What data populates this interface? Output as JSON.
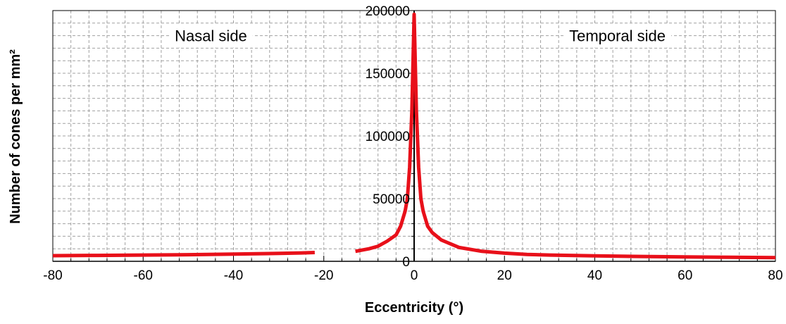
{
  "chart_data": {
    "type": "line",
    "title": "",
    "xlabel": "Eccentricity (°)",
    "ylabel": "Number of cones per mm²",
    "xlim": [
      -80,
      80
    ],
    "ylim": [
      0,
      200000
    ],
    "x_ticks": [
      -80,
      -60,
      -40,
      -20,
      0,
      20,
      40,
      60,
      80
    ],
    "x_tick_labels": [
      "-80",
      "-60",
      "-40",
      "-20",
      "0",
      "20",
      "40",
      "60",
      "80"
    ],
    "y_ticks": [
      0,
      50000,
      100000,
      150000,
      200000
    ],
    "y_tick_labels": [
      "0",
      "50000",
      "100000",
      "150000",
      "200000"
    ],
    "grid": true,
    "annotations": [
      {
        "text": "Nasal side",
        "x": -45,
        "y": 180000
      },
      {
        "text": "Temporal side",
        "x": 45,
        "y": 180000
      }
    ],
    "series": [
      {
        "name": "",
        "color": "#e8101a",
        "segments": [
          {
            "x": [
              -80,
              -70,
              -60,
              -50,
              -40,
              -30,
              -25,
              -22
            ],
            "y": [
              4500,
              4700,
              5000,
              5300,
              5800,
              6300,
              6700,
              7000
            ]
          },
          {
            "x": [
              -13,
              -10,
              -8,
              -6,
              -4,
              -3,
              -2,
              -1.5,
              -1,
              -0.5,
              0,
              0.5,
              1,
              1.5,
              2,
              3,
              4,
              6,
              8,
              10,
              15,
              20,
              25,
              30,
              40,
              50,
              60,
              70,
              80
            ],
            "y": [
              8000,
              10000,
              12000,
              16000,
              21000,
              28000,
              40000,
              50000,
              75000,
              120000,
              197000,
              120000,
              75000,
              50000,
              40000,
              28000,
              23000,
              17000,
              14000,
              11000,
              8000,
              6500,
              5500,
              5000,
              4300,
              3900,
              3500,
              3200,
              3000
            ]
          }
        ]
      }
    ]
  }
}
